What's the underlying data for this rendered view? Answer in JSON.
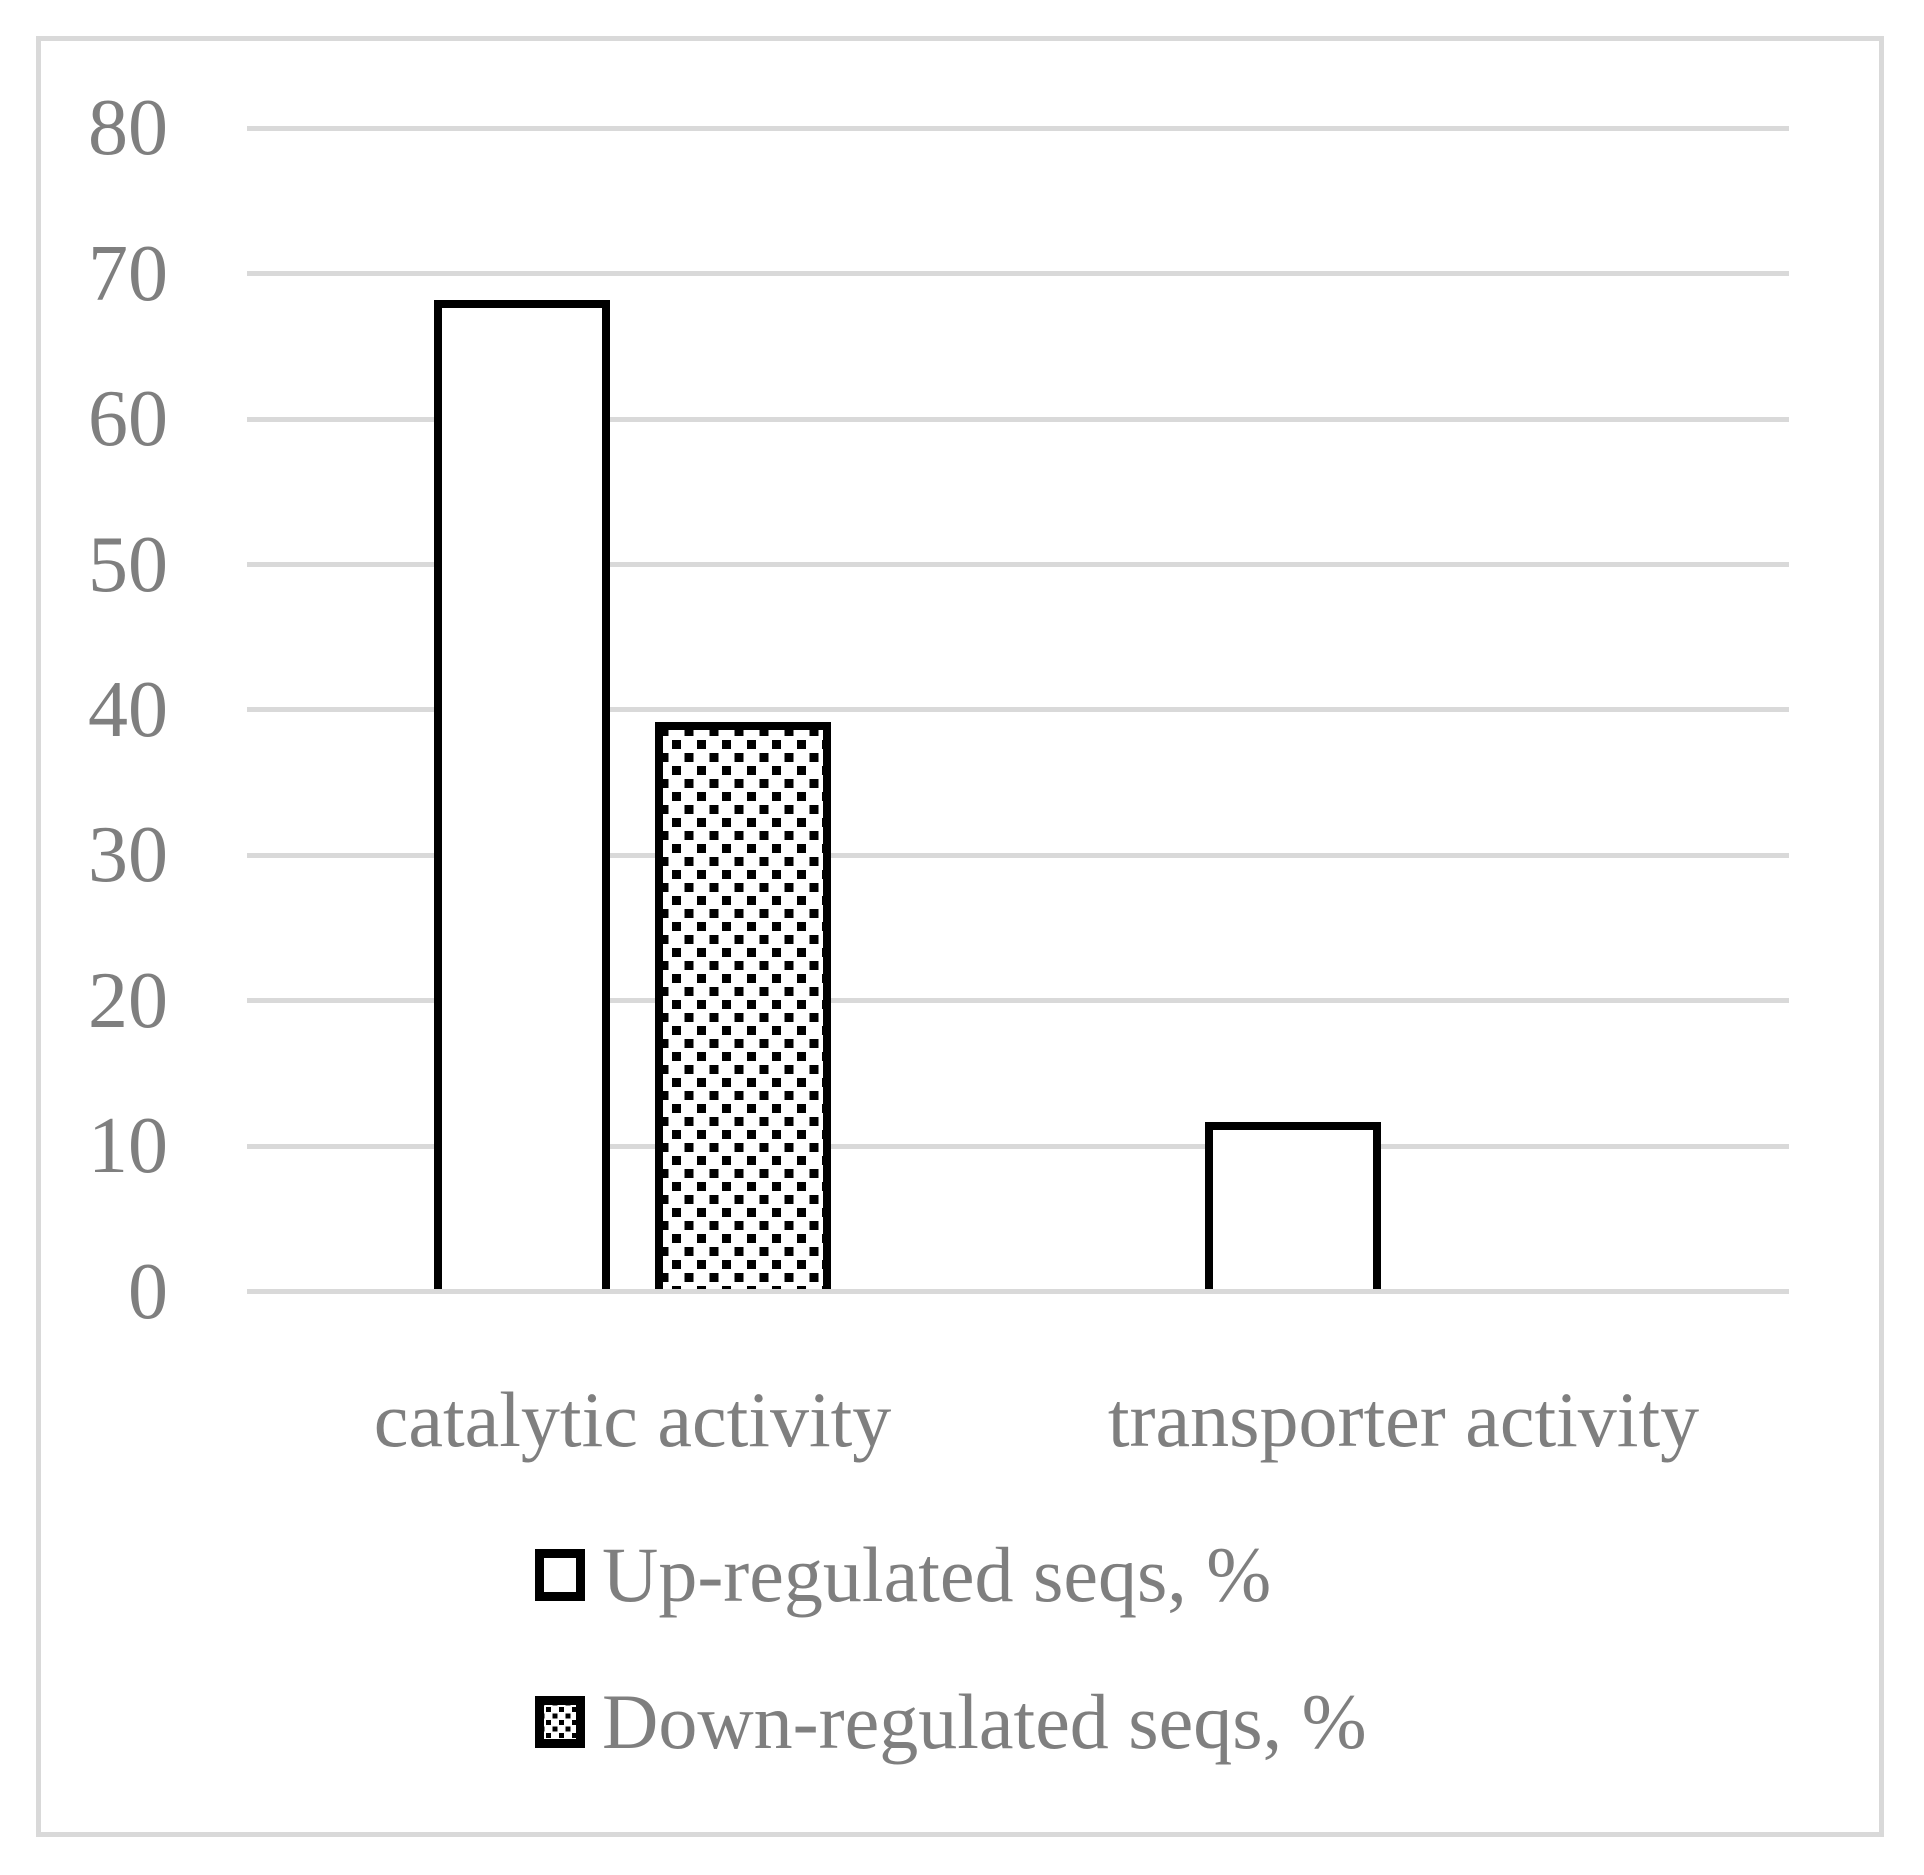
{
  "chart_data": {
    "type": "bar",
    "categories": [
      "catalytic activity",
      "transporter activity"
    ],
    "series": [
      {
        "name": "Up-regulated seqs, %",
        "pattern": "solid-white",
        "values": [
          68,
          11.5
        ]
      },
      {
        "name": "Down-regulated seqs, %",
        "pattern": "dotted-black",
        "values": [
          39,
          0
        ]
      }
    ],
    "ylim": [
      0,
      80
    ],
    "yticks": [
      0,
      10,
      20,
      30,
      40,
      50,
      60,
      70,
      80
    ],
    "grid": true,
    "legend_position": "bottom-left",
    "colors": {
      "background": "#ffffff",
      "frame_border": "#d9d9d9",
      "gridline": "#d9d9d9",
      "bar_outline": "#000000",
      "label_text": "#7f7f7f"
    }
  }
}
